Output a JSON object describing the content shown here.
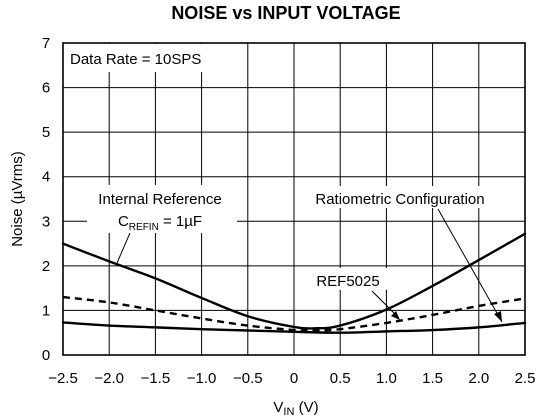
{
  "chart_data": {
    "type": "line",
    "title": "NOISE vs INPUT VOLTAGE",
    "xlabel": {
      "main": "V",
      "sub": "IN",
      "unit": "(V)"
    },
    "ylabel": "Noise (µVrms)",
    "xlim": [
      -2.5,
      2.5
    ],
    "ylim": [
      0,
      7
    ],
    "x_ticks": [
      -2.5,
      -2.0,
      -1.5,
      -1.0,
      -0.5,
      0,
      0.5,
      1.0,
      1.5,
      2.0,
      2.5
    ],
    "x_tick_labels": [
      "−2.5",
      "−2.0",
      "−1.5",
      "−1.0",
      "−0.5",
      "0",
      "0.5",
      "1.0",
      "1.5",
      "2.0",
      "2.5"
    ],
    "y_ticks": [
      0,
      1,
      2,
      3,
      4,
      5,
      6,
      7
    ],
    "y_tick_labels": [
      "0",
      "1",
      "2",
      "3",
      "4",
      "5",
      "6",
      "7"
    ],
    "grid": true,
    "series": [
      {
        "name": "Internal Reference",
        "style": "solid",
        "x": [
          -2.5,
          -2.0,
          -1.5,
          -1.0,
          -0.5,
          0.0,
          0.25,
          0.5,
          1.0,
          1.5,
          2.0,
          2.5
        ],
        "y": [
          2.5,
          2.1,
          1.72,
          1.28,
          0.87,
          0.63,
          0.6,
          0.66,
          1.02,
          1.55,
          2.13,
          2.72
        ]
      },
      {
        "name": "REF5025",
        "style": "dashed",
        "x": [
          -2.5,
          -2.0,
          -1.5,
          -1.0,
          -0.5,
          0.0,
          0.25,
          0.5,
          1.0,
          1.5,
          2.0,
          2.5
        ],
        "y": [
          1.3,
          1.18,
          1.0,
          0.82,
          0.66,
          0.56,
          0.55,
          0.58,
          0.72,
          0.9,
          1.1,
          1.27
        ]
      },
      {
        "name": "Ratiometric Configuration",
        "style": "solid",
        "x": [
          -2.5,
          -2.0,
          -1.5,
          -1.0,
          -0.5,
          0.0,
          0.5,
          1.0,
          1.5,
          2.0,
          2.5
        ],
        "y": [
          0.73,
          0.66,
          0.62,
          0.58,
          0.55,
          0.52,
          0.5,
          0.53,
          0.56,
          0.62,
          0.72
        ]
      }
    ],
    "annotations": {
      "data_rate": "Data Rate = 10SPS",
      "internal_reference": {
        "line1": "Internal Reference",
        "c_main": "C",
        "c_sub": "REFIN",
        "c_value": " = 1µF"
      },
      "ratiometric": "Ratiometric Configuration",
      "ref5025": "REF5025"
    }
  }
}
